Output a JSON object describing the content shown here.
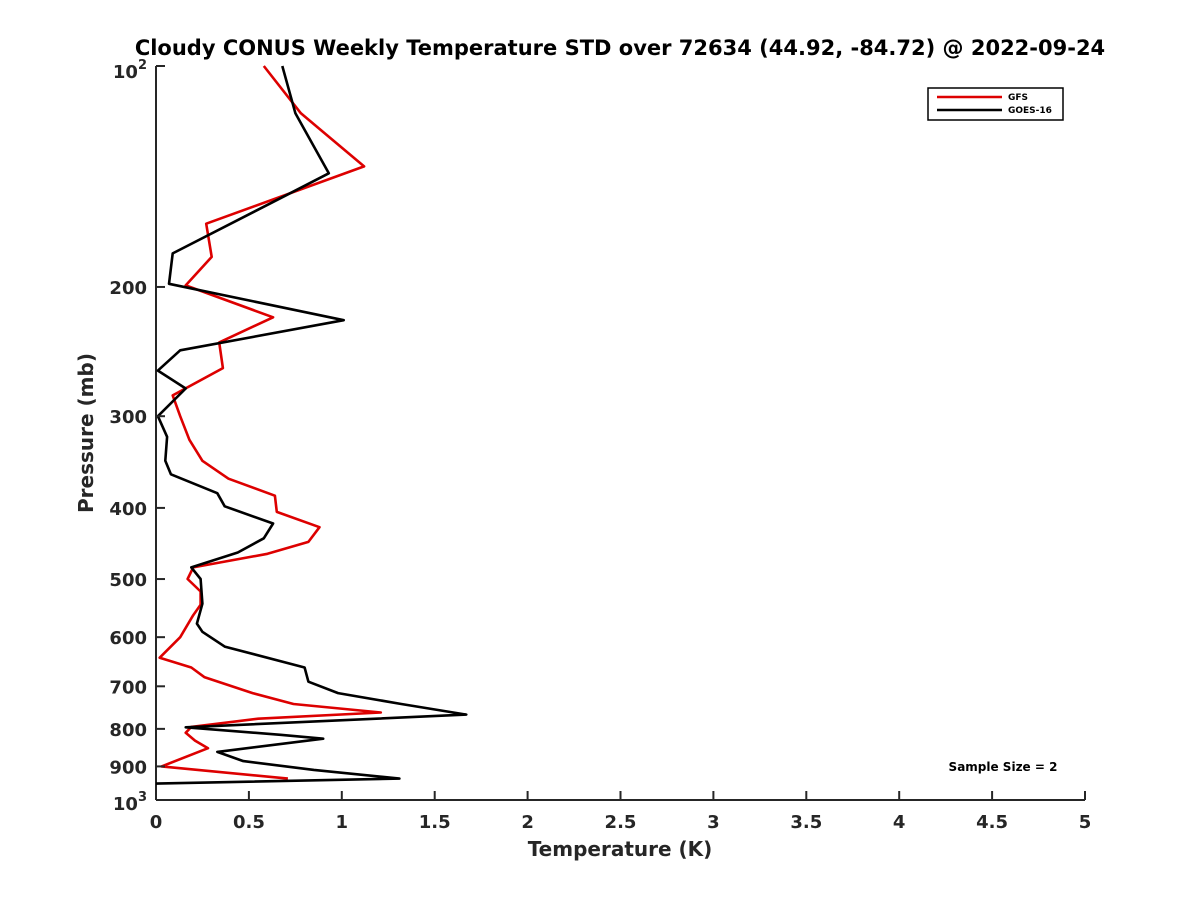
{
  "chart_data": {
    "type": "line",
    "title": "Cloudy CONUS Weekly Temperature STD over 72634 (44.92, -84.72) @ 2022-09-24",
    "xlabel": "Temperature (K)",
    "ylabel": "Pressure (mb)",
    "xlim": [
      0,
      5
    ],
    "ylim": [
      100,
      1000
    ],
    "y_scale": "log",
    "y_reversed": true,
    "grid": false,
    "legend_position": "top-right",
    "x_ticks": [
      {
        "value": 0,
        "label": "0"
      },
      {
        "value": 0.5,
        "label": "0.5"
      },
      {
        "value": 1,
        "label": "1"
      },
      {
        "value": 1.5,
        "label": "1.5"
      },
      {
        "value": 2,
        "label": "2"
      },
      {
        "value": 2.5,
        "label": "2.5"
      },
      {
        "value": 3,
        "label": "3"
      },
      {
        "value": 3.5,
        "label": "3.5"
      },
      {
        "value": 4,
        "label": "4"
      },
      {
        "value": 4.5,
        "label": "4.5"
      },
      {
        "value": 5,
        "label": "5"
      }
    ],
    "y_ticks": [
      {
        "value": 200,
        "label": "200"
      },
      {
        "value": 300,
        "label": "300"
      },
      {
        "value": 400,
        "label": "400"
      },
      {
        "value": 500,
        "label": "500"
      },
      {
        "value": 600,
        "label": "600"
      },
      {
        "value": 700,
        "label": "700"
      },
      {
        "value": 800,
        "label": "800"
      },
      {
        "value": 900,
        "label": "900"
      }
    ],
    "y_end_labels": {
      "top": {
        "value": 100,
        "base": "10",
        "exp": "2"
      },
      "bottom": {
        "value": 1000,
        "base": "10",
        "exp": "3"
      }
    },
    "annotation": "Sample Size = 2",
    "series": [
      {
        "name": "GFS",
        "color": "#dd0000",
        "points": [
          [
            0.58,
            100
          ],
          [
            0.78,
            116
          ],
          [
            1.12,
            137
          ],
          [
            0.27,
            164
          ],
          [
            0.3,
            182
          ],
          [
            0.16,
            199
          ],
          [
            0.63,
            220
          ],
          [
            0.34,
            238
          ],
          [
            0.36,
            258
          ],
          [
            0.09,
            281
          ],
          [
            0.13,
            300
          ],
          [
            0.18,
            323
          ],
          [
            0.25,
            345
          ],
          [
            0.39,
            365
          ],
          [
            0.64,
            385
          ],
          [
            0.65,
            405
          ],
          [
            0.88,
            425
          ],
          [
            0.82,
            445
          ],
          [
            0.6,
            462
          ],
          [
            0.2,
            482
          ],
          [
            0.17,
            500
          ],
          [
            0.24,
            520
          ],
          [
            0.24,
            542
          ],
          [
            0.2,
            560
          ],
          [
            0.13,
            600
          ],
          [
            0.02,
            640
          ],
          [
            0.19,
            660
          ],
          [
            0.26,
            680
          ],
          [
            0.52,
            715
          ],
          [
            0.74,
            740
          ],
          [
            1.21,
            760
          ],
          [
            0.55,
            775
          ],
          [
            0.19,
            795
          ],
          [
            0.16,
            810
          ],
          [
            0.21,
            830
          ],
          [
            0.28,
            850
          ],
          [
            0.03,
            900
          ],
          [
            0.71,
            935
          ]
        ]
      },
      {
        "name": "GOES-16",
        "color": "#000000",
        "points": [
          [
            0.68,
            100
          ],
          [
            0.75,
            116
          ],
          [
            0.93,
            140
          ],
          [
            0.7,
            150
          ],
          [
            0.09,
            180
          ],
          [
            0.07,
            198
          ],
          [
            1.01,
            222
          ],
          [
            0.13,
            244
          ],
          [
            0.01,
            260
          ],
          [
            0.16,
            275
          ],
          [
            0.01,
            300
          ],
          [
            0.06,
            320
          ],
          [
            0.05,
            345
          ],
          [
            0.08,
            360
          ],
          [
            0.33,
            382
          ],
          [
            0.37,
            398
          ],
          [
            0.63,
            420
          ],
          [
            0.58,
            440
          ],
          [
            0.44,
            460
          ],
          [
            0.19,
            482
          ],
          [
            0.24,
            500
          ],
          [
            0.25,
            540
          ],
          [
            0.22,
            575
          ],
          [
            0.25,
            590
          ],
          [
            0.37,
            618
          ],
          [
            0.8,
            660
          ],
          [
            0.82,
            690
          ],
          [
            0.98,
            715
          ],
          [
            1.32,
            740
          ],
          [
            1.67,
            765
          ],
          [
            0.16,
            796
          ],
          [
            0.67,
            815
          ],
          [
            0.9,
            825
          ],
          [
            0.33,
            860
          ],
          [
            0.47,
            885
          ],
          [
            0.85,
            910
          ],
          [
            1.31,
            935
          ],
          [
            0.0,
            950
          ]
        ]
      }
    ]
  }
}
